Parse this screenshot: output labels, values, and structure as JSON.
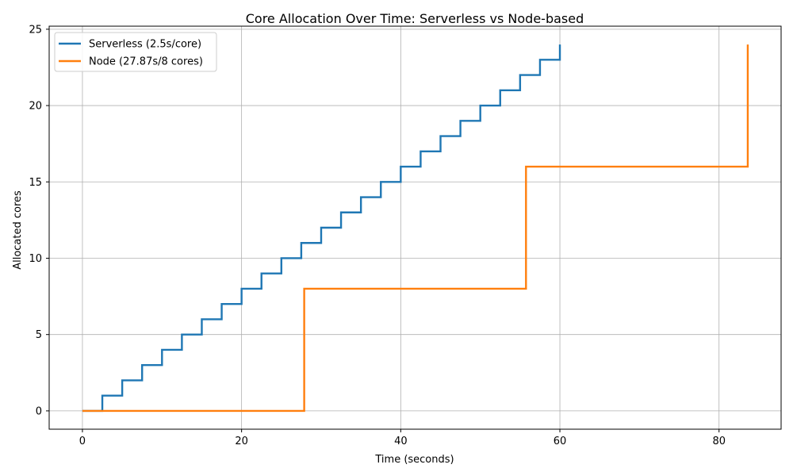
{
  "chart_data": {
    "type": "line",
    "title": "Core Allocation Over Time: Serverless vs Node-based",
    "xlabel": "Time (seconds)",
    "ylabel": "Allocated cores",
    "xlim": [
      -4.18,
      87.8
    ],
    "ylim": [
      -1.2,
      25.2
    ],
    "xticks": [
      0,
      20,
      40,
      60,
      80
    ],
    "yticks": [
      0,
      5,
      10,
      15,
      20,
      25
    ],
    "grid": true,
    "legend_position": "top-left",
    "step": "post",
    "series": [
      {
        "name": "Serverless (2.5s/core)",
        "color": "#1f77b4",
        "x": [
          0,
          2.5,
          5,
          7.5,
          10,
          12.5,
          15,
          17.5,
          20,
          22.5,
          25,
          27.5,
          30,
          32.5,
          35,
          37.5,
          40,
          42.5,
          45,
          47.5,
          50,
          52.5,
          55,
          57.5,
          60
        ],
        "y": [
          0,
          1,
          2,
          3,
          4,
          5,
          6,
          7,
          8,
          9,
          10,
          11,
          12,
          13,
          14,
          15,
          16,
          17,
          18,
          19,
          20,
          21,
          22,
          23,
          24
        ]
      },
      {
        "name": "Node (27.87s/8 cores)",
        "color": "#ff7f0e",
        "x": [
          0,
          27.87,
          55.74,
          83.61
        ],
        "y": [
          0,
          8,
          16,
          24
        ]
      }
    ]
  }
}
